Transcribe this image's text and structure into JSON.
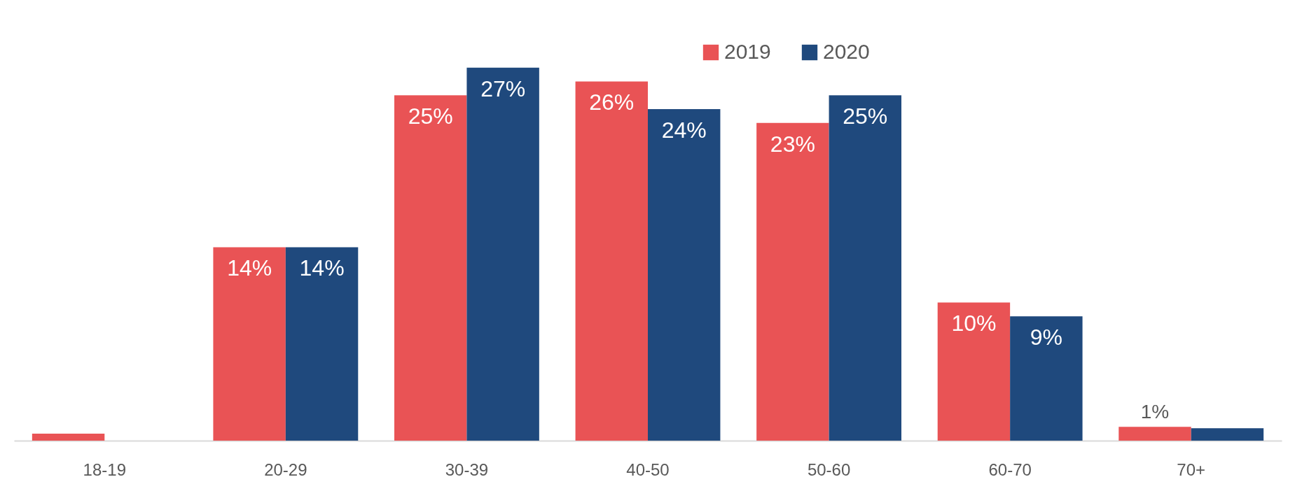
{
  "chart_data": {
    "type": "bar",
    "categories": [
      "18-19",
      "20-29",
      "30-39",
      "40-50",
      "50-60",
      "60-70",
      "70+"
    ],
    "series": [
      {
        "name": "2019",
        "color": "#e95355",
        "values": [
          0.5,
          14,
          25,
          26,
          23,
          10,
          1
        ],
        "value_labels": [
          null,
          "14%",
          "25%",
          "26%",
          "23%",
          "10%",
          "1%"
        ]
      },
      {
        "name": "2020",
        "color": "#1f497d",
        "values": [
          null,
          14,
          27,
          24,
          25,
          9,
          0.9
        ],
        "value_labels": [
          null,
          "14%",
          "27%",
          "24%",
          "25%",
          "9%",
          null
        ]
      }
    ],
    "legend": "top",
    "grid": false
  }
}
